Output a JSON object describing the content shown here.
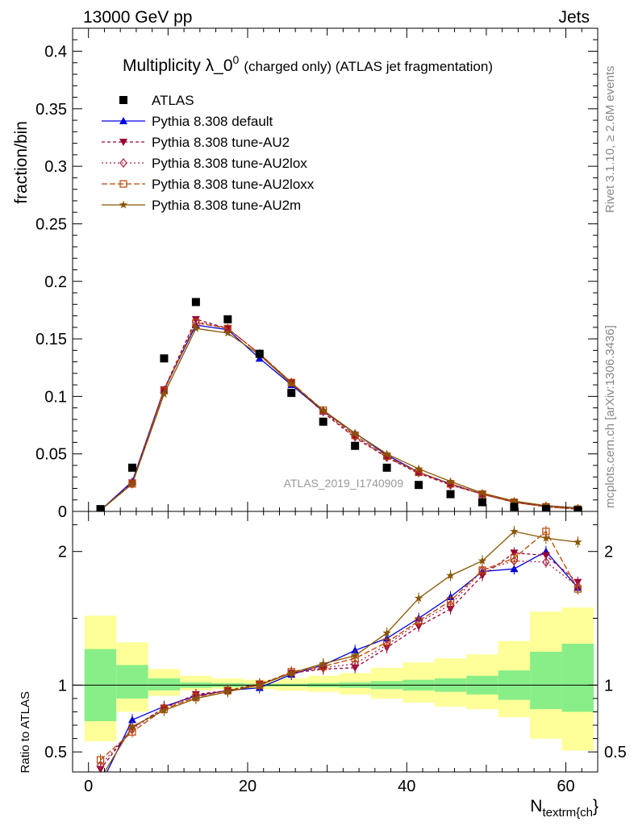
{
  "header": {
    "left": "13000 GeV pp",
    "right": "Jets"
  },
  "side_labels": {
    "rivet": "Rivet 3.1.10, ≥ 2.6M events",
    "mcplots": "mcplots.cern.ch [arXiv:1306.3436]"
  },
  "analysis_id": "ATLAS_2019_I1740909",
  "colors": {
    "data": "#000000",
    "default": "#0000dd",
    "au2": "#990033",
    "au2lox": "#aa2244",
    "au2loxx": "#bb4400",
    "au2m": "#885500",
    "band_inner": "#88ee88",
    "band_outer": "#ffff99"
  },
  "chart_data": [
    {
      "type": "line",
      "title": "Multiplicity λ_0⁰ (charged only) (ATLAS jet fragmentation)",
      "title_main": "Multiplicity λ_0",
      "title_sup": "0",
      "title_rest": "(charged only) (ATLAS jet fragmentation)",
      "ylabel": "fraction/bin",
      "xlim": [
        -2,
        64
      ],
      "ylim": [
        0,
        0.42
      ],
      "yticks": [
        0,
        0.05,
        0.1,
        0.15,
        0.2,
        0.25,
        0.3,
        0.35,
        0.4
      ],
      "ytick_labels": [
        "0",
        "0.05",
        "0.1",
        "0.15",
        "0.2",
        "0.25",
        "0.3",
        "0.35",
        "0.4"
      ],
      "x": [
        1.5,
        5.5,
        9.5,
        13.5,
        17.5,
        21.5,
        25.5,
        29.5,
        33.5,
        37.5,
        41.5,
        45.5,
        49.5,
        53.5,
        57.5,
        61.5
      ],
      "legend": [
        "ATLAS",
        "Pythia 8.308 default",
        "Pythia 8.308 tune-AU2",
        "Pythia 8.308 tune-AU2lox",
        "Pythia 8.308 tune-AU2loxx",
        "Pythia 8.308 tune-AU2m"
      ],
      "series": [
        {
          "name": "ATLAS",
          "key": "data",
          "values": [
            0.002,
            0.038,
            0.133,
            0.182,
            0.167,
            0.137,
            0.103,
            0.078,
            0.057,
            0.038,
            0.023,
            0.015,
            0.008,
            0.004,
            0.002,
            0.001
          ]
        },
        {
          "name": "Pythia 8.308 default",
          "key": "default",
          "values": [
            0.001,
            0.026,
            0.106,
            0.162,
            0.158,
            0.133,
            0.11,
            0.087,
            0.068,
            0.049,
            0.034,
            0.024,
            0.015,
            0.008,
            0.005,
            0.003
          ]
        },
        {
          "name": "Pythia 8.308 tune-AU2",
          "key": "au2",
          "values": [
            0.001,
            0.025,
            0.106,
            0.167,
            0.159,
            0.137,
            0.112,
            0.086,
            0.064,
            0.047,
            0.033,
            0.023,
            0.015,
            0.008,
            0.004,
            0.002
          ]
        },
        {
          "name": "Pythia 8.308 tune-AU2lox",
          "key": "au2lox",
          "values": [
            0.001,
            0.024,
            0.105,
            0.165,
            0.159,
            0.137,
            0.112,
            0.087,
            0.065,
            0.047,
            0.034,
            0.023,
            0.015,
            0.008,
            0.004,
            0.002
          ]
        },
        {
          "name": "Pythia 8.308 tune-AU2loxx",
          "key": "au2loxx",
          "values": [
            0.001,
            0.024,
            0.105,
            0.164,
            0.159,
            0.137,
            0.112,
            0.088,
            0.066,
            0.048,
            0.034,
            0.024,
            0.015,
            0.008,
            0.004,
            0.002
          ]
        },
        {
          "name": "Pythia 8.308 tune-AU2m",
          "key": "au2m",
          "values": [
            0.001,
            0.024,
            0.102,
            0.159,
            0.155,
            0.136,
            0.111,
            0.088,
            0.068,
            0.05,
            0.037,
            0.026,
            0.016,
            0.009,
            0.005,
            0.003
          ]
        }
      ]
    },
    {
      "type": "line",
      "ylabel": "Ratio to ATLAS",
      "xlabel_main": "N",
      "xlabel_sub": "textrm{ch",
      "xlabel_tail": "}",
      "xlim": [
        -2,
        64
      ],
      "ylim": [
        0.35,
        2.3
      ],
      "xticks": [
        0,
        20,
        40,
        60
      ],
      "xtick_labels": [
        "0",
        "20",
        "40",
        "60"
      ],
      "yticks": [
        0.5,
        1,
        2
      ],
      "ytick_labels": [
        "0.5",
        "1",
        "2"
      ],
      "x": [
        1.5,
        5.5,
        9.5,
        13.5,
        17.5,
        21.5,
        25.5,
        29.5,
        33.5,
        37.5,
        41.5,
        45.5,
        49.5,
        53.5,
        57.5,
        61.5
      ],
      "bin_edges": [
        -0.5,
        3.5,
        7.5,
        11.5,
        15.5,
        19.5,
        23.5,
        27.5,
        31.5,
        35.5,
        39.5,
        43.5,
        47.5,
        51.5,
        55.5,
        59.5,
        63.5
      ],
      "band_inner": {
        "lo": [
          0.73,
          0.9,
          0.96,
          0.98,
          0.985,
          0.99,
          0.99,
          0.985,
          0.98,
          0.97,
          0.96,
          0.95,
          0.93,
          0.89,
          0.82,
          0.8
        ],
        "hi": [
          1.27,
          1.15,
          1.05,
          1.02,
          1.015,
          1.01,
          1.01,
          1.015,
          1.02,
          1.03,
          1.04,
          1.05,
          1.07,
          1.11,
          1.25,
          1.31
        ]
      },
      "band_outer": {
        "lo": [
          0.58,
          0.8,
          0.92,
          0.96,
          0.97,
          0.97,
          0.96,
          0.95,
          0.93,
          0.9,
          0.87,
          0.84,
          0.82,
          0.76,
          0.6,
          0.51
        ],
        "hi": [
          1.52,
          1.32,
          1.12,
          1.07,
          1.05,
          1.04,
          1.05,
          1.07,
          1.09,
          1.13,
          1.17,
          1.2,
          1.23,
          1.33,
          1.55,
          1.58
        ]
      },
      "series": [
        {
          "name": "Pythia 8.308 default",
          "key": "default",
          "values": [
            0.25,
            0.74,
            0.84,
            0.92,
            0.96,
            0.98,
            1.08,
            1.15,
            1.26,
            1.35,
            1.5,
            1.66,
            1.85,
            1.87,
            2.0,
            1.73
          ]
        },
        {
          "name": "Pythia 8.308 tune-AU2",
          "key": "au2",
          "values": [
            0.37,
            0.68,
            0.83,
            0.93,
            0.96,
            1.01,
            1.09,
            1.12,
            1.13,
            1.28,
            1.44,
            1.57,
            1.82,
            1.99,
            1.97,
            1.77
          ]
        },
        {
          "name": "Pythia 8.308 tune-AU2lox",
          "key": "au2lox",
          "values": [
            0.4,
            0.67,
            0.83,
            0.92,
            0.96,
            1.0,
            1.09,
            1.13,
            1.16,
            1.3,
            1.47,
            1.6,
            1.86,
            1.93,
            1.92,
            1.74
          ]
        },
        {
          "name": "Pythia 8.308 tune-AU2loxx",
          "key": "au2loxx",
          "values": [
            0.44,
            0.65,
            0.82,
            0.91,
            0.96,
            1.0,
            1.1,
            1.14,
            1.2,
            1.32,
            1.48,
            1.63,
            1.86,
            1.95,
            2.15,
            1.72
          ]
        },
        {
          "name": "Pythia 8.308 tune-AU2m",
          "key": "au2m",
          "values": [
            0.3,
            0.69,
            0.81,
            0.9,
            0.95,
            1.0,
            1.09,
            1.16,
            1.22,
            1.39,
            1.65,
            1.82,
            1.93,
            2.15,
            2.1,
            2.07
          ]
        }
      ]
    }
  ]
}
